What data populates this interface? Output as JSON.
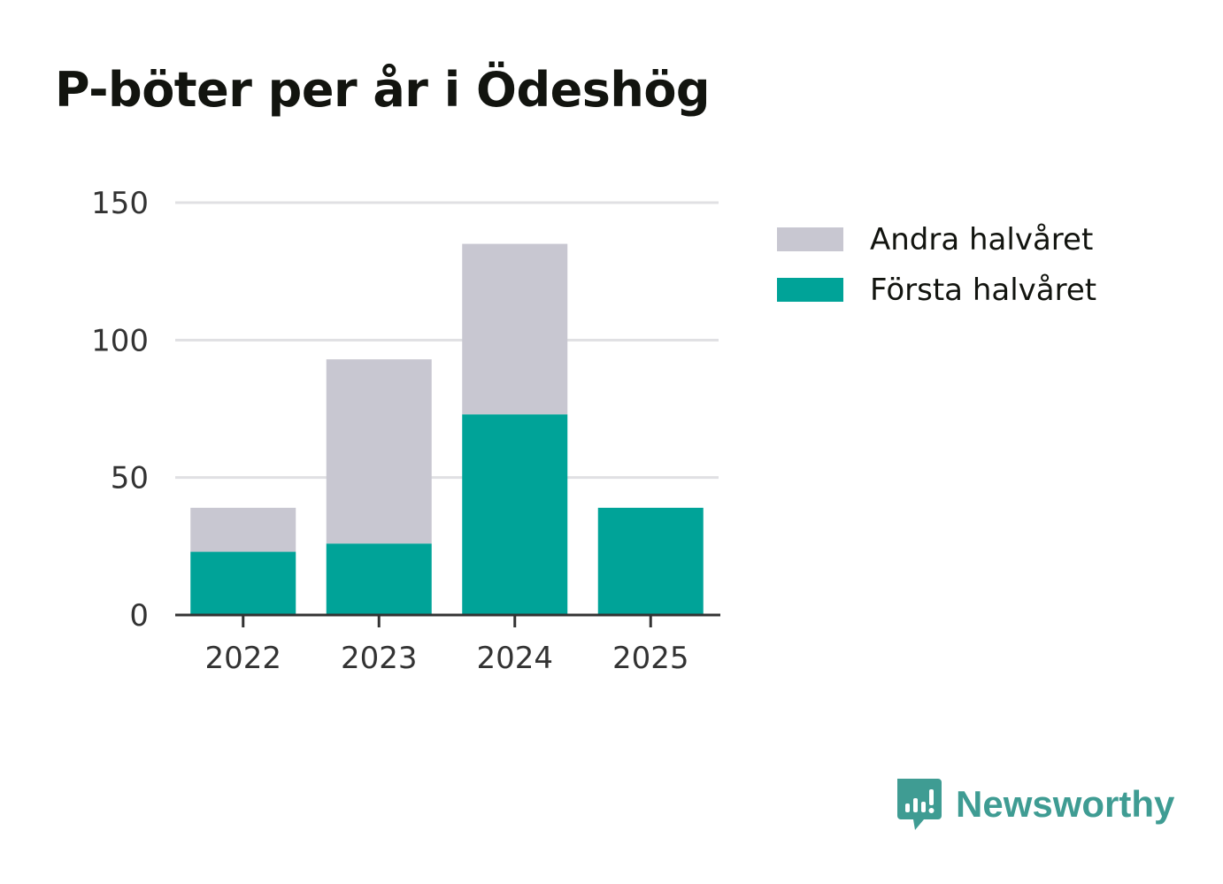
{
  "chart_data": {
    "type": "bar",
    "stacked": true,
    "title": "P-böter per år i Ödeshög",
    "categories": [
      "2022",
      "2023",
      "2024",
      "2025"
    ],
    "series": [
      {
        "name": "Första halvåret",
        "color": "#00a398",
        "values": [
          23,
          26,
          73,
          39
        ]
      },
      {
        "name": "Andra halvåret",
        "color": "#c8c7d1",
        "values": [
          16,
          67,
          62,
          0
        ]
      }
    ],
    "legend_order": [
      "Andra halvåret",
      "Första halvåret"
    ],
    "yticks": [
      0,
      50,
      100,
      150
    ],
    "ylim": [
      0,
      150
    ],
    "xlabel": "",
    "ylabel": "",
    "grid": true,
    "legend_position": "right"
  },
  "brand": {
    "name": "Newsworthy",
    "color": "#3f9c93",
    "logo_icon": "newsworthy-chart-bubble-icon"
  }
}
